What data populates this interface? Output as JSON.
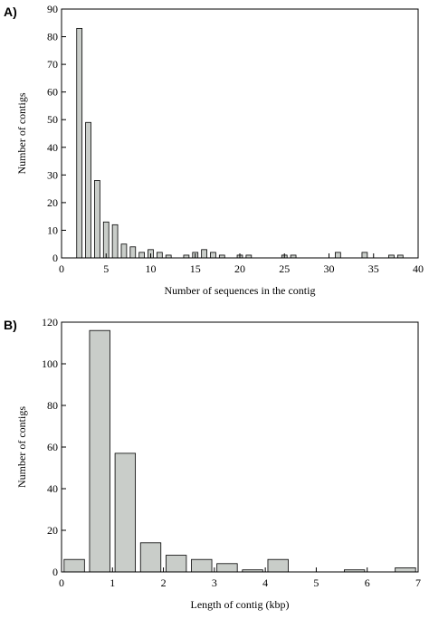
{
  "chart_data": [
    {
      "type": "bar",
      "panel_label": "A)",
      "xlabel": "Number of sequences in the contig",
      "ylabel": "Number of contigs",
      "x": [
        2,
        3,
        4,
        5,
        6,
        7,
        8,
        9,
        10,
        11,
        12,
        14,
        15,
        16,
        17,
        18,
        20,
        21,
        25,
        26,
        31,
        34,
        37,
        38
      ],
      "values": [
        83,
        49,
        28,
        13,
        12,
        5,
        4,
        2,
        3,
        2,
        1,
        1,
        2,
        3,
        2,
        1,
        1,
        1,
        1,
        1,
        2,
        2,
        1,
        1
      ],
      "color": "#c9cdc9",
      "xlim": [
        0,
        40
      ],
      "xticks": [
        0,
        5,
        10,
        15,
        20,
        25,
        30,
        35,
        40
      ],
      "ylim": [
        0,
        90
      ],
      "yticks": [
        0,
        10,
        20,
        30,
        40,
        50,
        60,
        70,
        80,
        90
      ]
    },
    {
      "type": "histogram",
      "panel_label": "B)",
      "xlabel": "Length of contig (kbp)",
      "ylabel": "Number of contigs",
      "bins": [
        0,
        0.5,
        1,
        1.5,
        2,
        2.5,
        3,
        3.5,
        4,
        4.5,
        5,
        5.5,
        6,
        6.5,
        7
      ],
      "values": [
        6,
        116,
        57,
        14,
        8,
        6,
        4,
        1,
        6,
        0,
        0,
        1,
        0,
        2
      ],
      "color": "#c9cdc9",
      "xlim": [
        0,
        7
      ],
      "xticks": [
        0,
        1,
        2,
        3,
        4,
        5,
        6,
        7
      ],
      "ylim": [
        0,
        120
      ],
      "yticks": [
        0,
        20,
        40,
        60,
        80,
        100,
        120
      ]
    }
  ]
}
